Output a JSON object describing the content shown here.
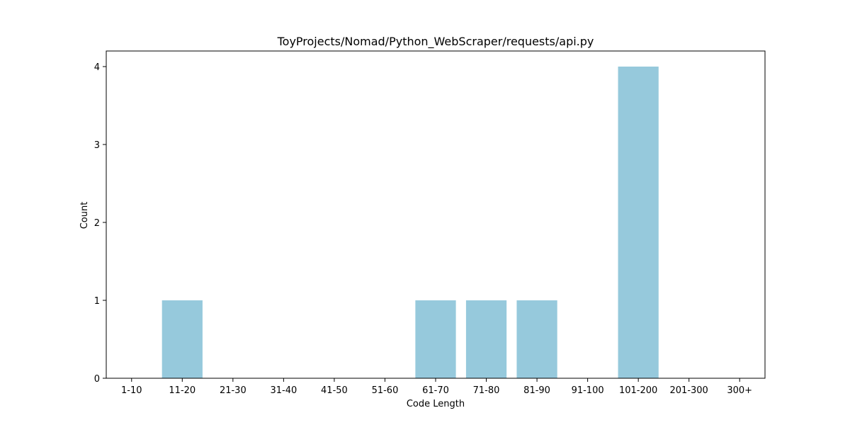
{
  "chart_data": {
    "type": "bar",
    "title": "ToyProjects/Nomad/Python_WebScraper/requests/api.py",
    "xlabel": "Code Length",
    "ylabel": "Count",
    "categories": [
      "1-10",
      "11-20",
      "21-30",
      "31-40",
      "41-50",
      "51-60",
      "61-70",
      "71-80",
      "81-90",
      "91-100",
      "101-200",
      "201-300",
      "300+"
    ],
    "values": [
      0,
      1,
      0,
      0,
      0,
      0,
      1,
      1,
      1,
      0,
      4,
      0,
      0
    ],
    "ylim": [
      0,
      4.2
    ],
    "yticks": [
      0,
      1,
      2,
      3,
      4
    ],
    "bar_color": "#96c9dc",
    "grid": false,
    "legend": "none"
  }
}
